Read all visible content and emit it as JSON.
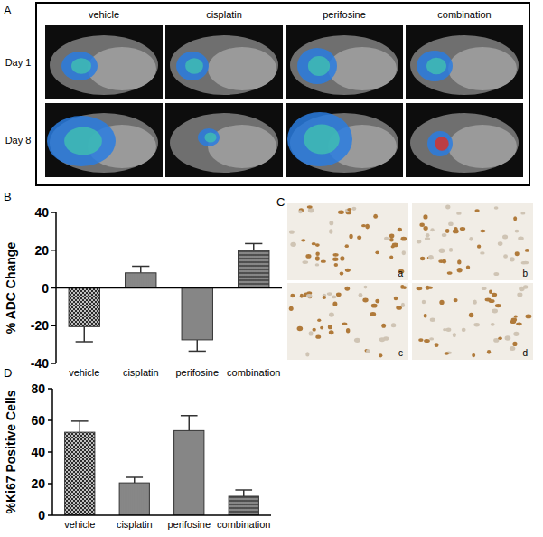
{
  "figure": {
    "A": {
      "label": "A",
      "columns": [
        "vehicle",
        "cisplatin",
        "perifosine",
        "combination"
      ],
      "rows": [
        "Day 1",
        "Day 8"
      ]
    },
    "C": {
      "label": "C",
      "images": [
        "a",
        "b",
        "c",
        "d"
      ]
    }
  },
  "chart_data": [
    {
      "type": "bar",
      "panel": "B",
      "y_label": "% ADC Change",
      "categories": [
        "vehicle",
        "cisplatin",
        "perifosine",
        "combination"
      ],
      "values": [
        -20.5,
        8,
        -27.5,
        20
      ],
      "errors": [
        8,
        3.5,
        6,
        3.5
      ],
      "color": "#333333",
      "ylim": [
        -40,
        40
      ],
      "yticks": [
        -40,
        -20,
        0,
        20,
        40
      ]
    },
    {
      "type": "bar",
      "panel": "D",
      "y_label": "%Ki67 Positive Cells",
      "categories": [
        "vehicle",
        "cisplatin",
        "perifosine",
        "combination"
      ],
      "values": [
        52.5,
        20.5,
        53.5,
        12
      ],
      "errors": [
        7,
        3.5,
        9.5,
        4
      ],
      "color": "#333333",
      "ylim": [
        0,
        80
      ],
      "yticks": [
        0,
        20,
        40,
        60,
        80
      ]
    }
  ]
}
